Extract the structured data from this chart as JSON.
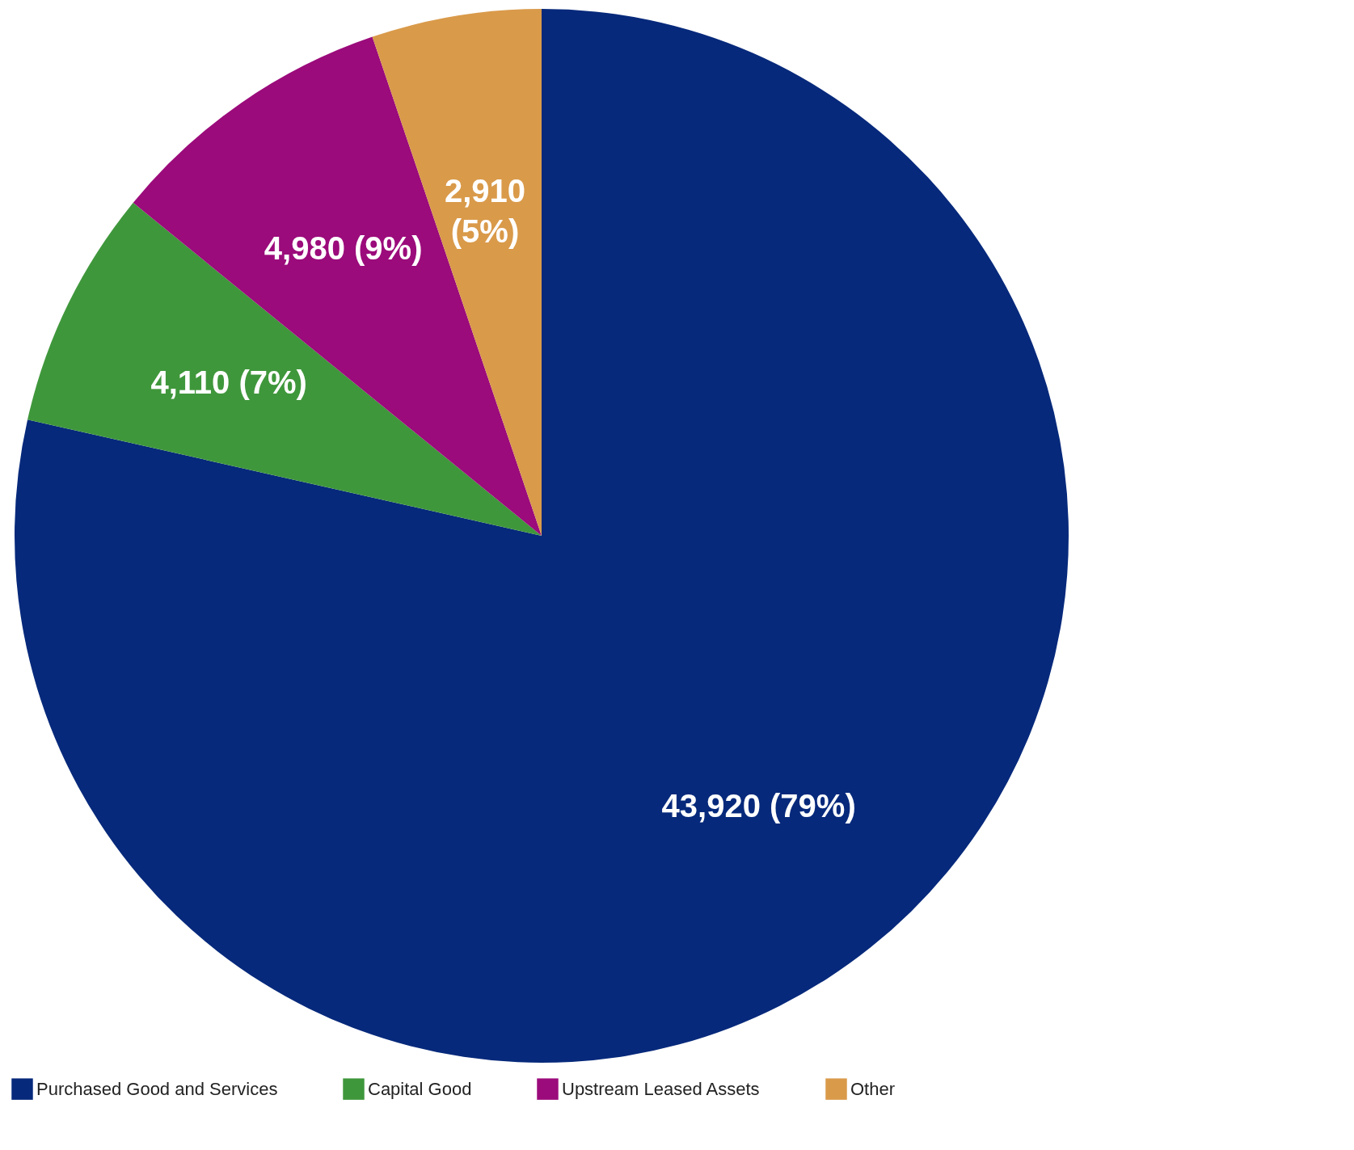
{
  "chart_data": {
    "type": "pie",
    "categories": [
      "Purchased Good and Services",
      "Capital Good",
      "Upstream Leased Assets",
      "Other"
    ],
    "values": [
      43920,
      4110,
      4980,
      2910
    ],
    "colors": [
      "#06297b",
      "#3f973b",
      "#9b0b7b",
      "#d99a4a"
    ],
    "value_labels": [
      "43,920 (79%)",
      "4,110 (7%)",
      "4,980 (9%)",
      "2,910 (5%)"
    ],
    "legend": "bottom"
  }
}
